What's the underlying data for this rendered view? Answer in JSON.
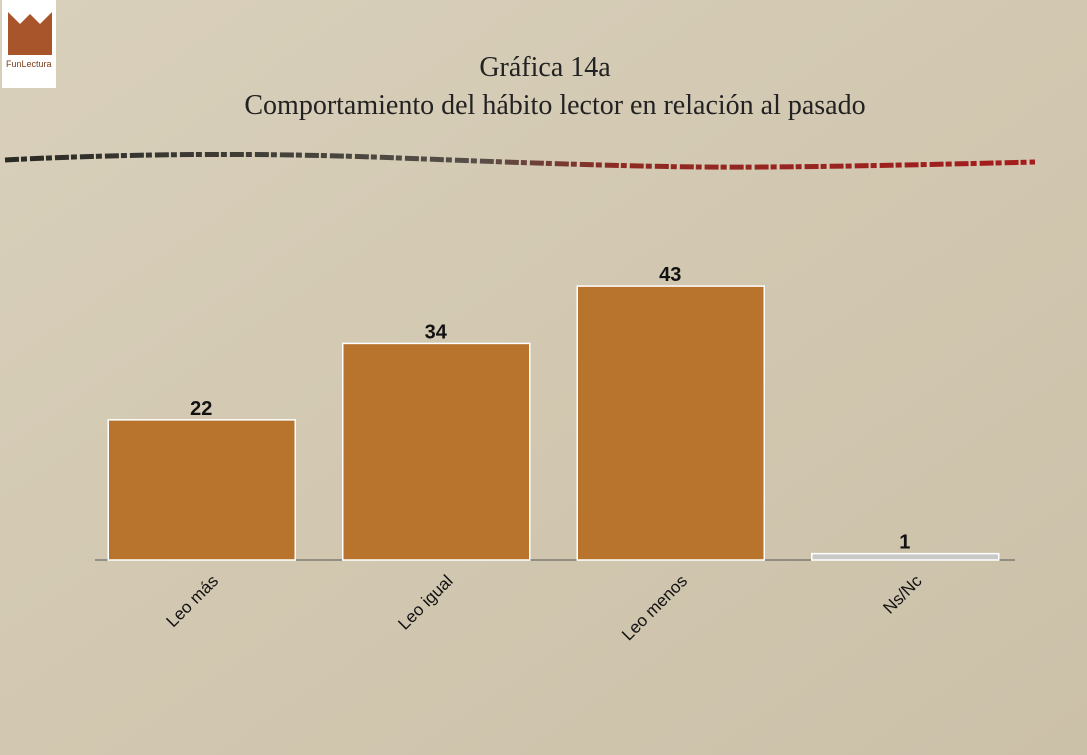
{
  "chart_data": {
    "type": "bar",
    "title": "Gráfica 14a",
    "subtitle": "Comportamiento del hábito lector en relación al pasado",
    "logo_text": "FunLectura",
    "categories": [
      "Leo más",
      "Leo igual",
      "Leo menos",
      "Ns/Nc"
    ],
    "values": [
      22,
      34,
      43,
      1
    ],
    "colors": [
      "#b8732c",
      "#b8732c",
      "#b8732c",
      "#c9c9c9"
    ]
  }
}
